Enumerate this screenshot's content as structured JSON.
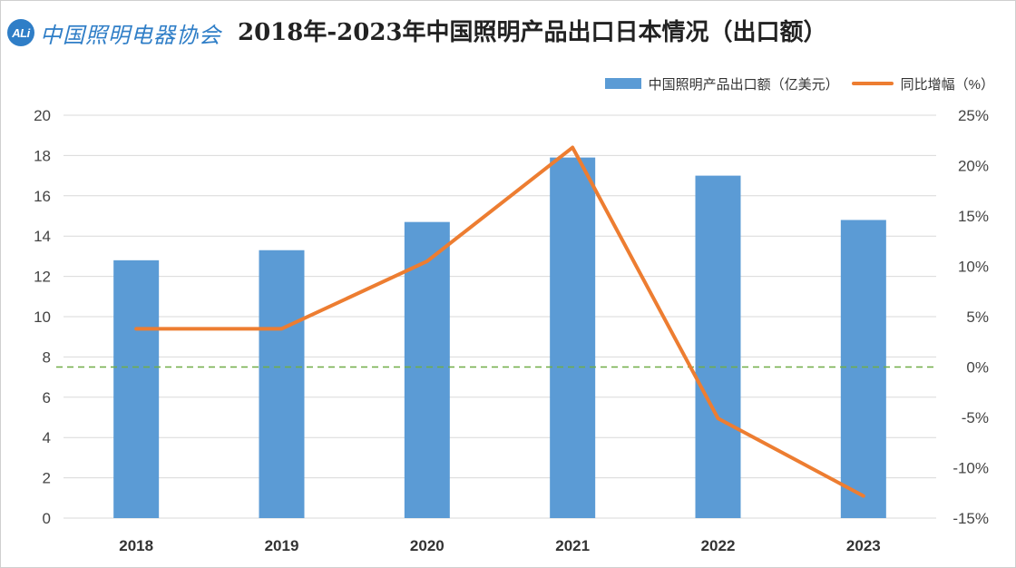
{
  "header": {
    "logo_mark": "ALi",
    "logo_text": "中国照明电器协会",
    "title": "2018年-2023年中国照明产品出口日本情况（出口额）"
  },
  "colors": {
    "bar": "#5b9bd5",
    "line": "#ed7d31",
    "zero_line": "#70ad47",
    "grid": "#d9d9d9",
    "logo": "#2f7ec7"
  },
  "chart_data": {
    "type": "bar",
    "categories": [
      "2018",
      "2019",
      "2020",
      "2021",
      "2022",
      "2023"
    ],
    "series": [
      {
        "name": "中国照明产品出口额（亿美元）",
        "type": "bar",
        "axis": "left",
        "values": [
          12.8,
          13.3,
          14.7,
          17.9,
          17.0,
          14.8
        ]
      },
      {
        "name": "同比增幅（%）",
        "type": "line",
        "axis": "right",
        "values": [
          3.8,
          3.8,
          10.5,
          21.8,
          -5.1,
          -12.8
        ]
      }
    ],
    "ylim": [
      0,
      20
    ],
    "y_ticks": [
      "0",
      "2",
      "4",
      "6",
      "8",
      "10",
      "12",
      "14",
      "16",
      "18",
      "20"
    ],
    "y2lim": [
      -15,
      25
    ],
    "y2_ticks": [
      "-15%",
      "-10%",
      "-5%",
      "0%",
      "5%",
      "10%",
      "15%",
      "20%",
      "25%"
    ],
    "grid": true,
    "legend": "top-right",
    "reference_line": {
      "axis": "right",
      "value": 0,
      "style": "dashed"
    }
  }
}
